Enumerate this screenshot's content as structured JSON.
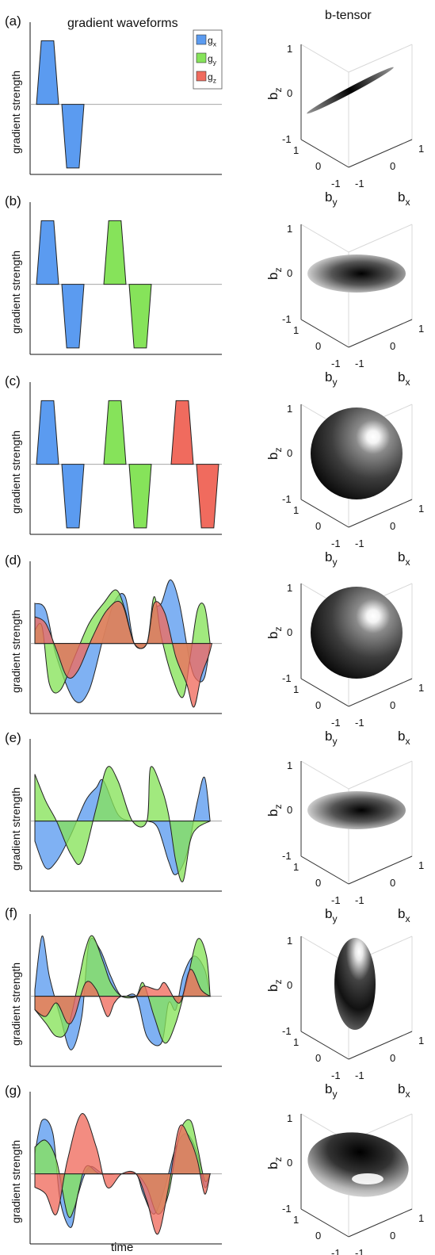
{
  "headers": {
    "left": "gradient waveforms",
    "right": "b-tensor"
  },
  "x_axis_label": "time",
  "y_axis_label": "gradient strength",
  "legend": [
    {
      "key": "gx",
      "base": "g",
      "sub": "x",
      "color": "#5b9bf0"
    },
    {
      "key": "gy",
      "base": "g",
      "sub": "y",
      "color": "#86e35a"
    },
    {
      "key": "gz",
      "base": "g",
      "sub": "z",
      "color": "#f06b5e"
    }
  ],
  "tensor_axis_labels": {
    "bx_base": "b",
    "bx_sub": "x",
    "by_base": "b",
    "by_sub": "y",
    "bz_base": "b",
    "bz_sub": "z"
  },
  "tensor_ticks": {
    "top": "1",
    "mid": "0",
    "bottom": "-1"
  },
  "panels": [
    {
      "label": "(a)",
      "shape": "line",
      "waveform": "1D"
    },
    {
      "label": "(b)",
      "shape": "planar",
      "waveform": "2D"
    },
    {
      "label": "(c)",
      "shape": "spherical",
      "waveform": "3D"
    },
    {
      "label": "(d)",
      "shape": "spherical",
      "waveform": "optimized-3D"
    },
    {
      "label": "(e)",
      "shape": "planar",
      "waveform": "optimized-2D"
    },
    {
      "label": "(f)",
      "shape": "prolate",
      "waveform": "optimized-prolate"
    },
    {
      "label": "(g)",
      "shape": "oblate-tilted",
      "waveform": "optimized-oblate"
    }
  ]
}
